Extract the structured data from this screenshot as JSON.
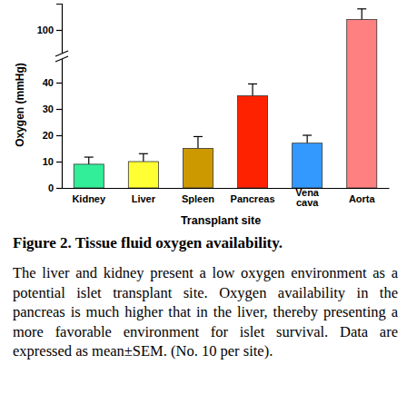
{
  "chart_data": {
    "type": "bar",
    "title": "Figure 2. Tissue fluid oxygen availability.",
    "annotations": [
      "The liver and kidney present a low oxygen environment as a potential islet transplant site. Oxygen availability in the pancreas is much higher that in the liver, thereby presenting a more favorable environment for islet survival. Data are expressed as mean±SEM. (No. 10 per site)."
    ],
    "x_label": "Transplant site",
    "y_label": "Oxygen (mmHg)",
    "categories": [
      "Kidney",
      "Liver",
      "Spleen",
      "Pancreas",
      "Vena cava",
      "Aorta"
    ],
    "values": [
      9,
      10,
      15,
      35,
      17,
      104
    ],
    "errors": [
      2.7,
      3,
      4.5,
      4.5,
      3,
      4
    ],
    "colors": [
      "#33ee99",
      "#ffff33",
      "#cc9900",
      "#ff2200",
      "#3399ff",
      "#ff8080"
    ],
    "ylim": [
      0,
      110
    ],
    "yticks": [
      0,
      10,
      20,
      30,
      40,
      100
    ]
  }
}
